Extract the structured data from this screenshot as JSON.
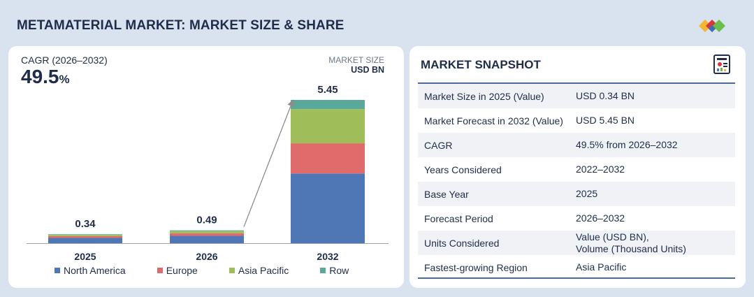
{
  "header": {
    "title": "METAMATERIAL MARKET: MARKET SIZE & SHARE"
  },
  "colors": {
    "north_america": "#4f77b6",
    "europe": "#e06b6b",
    "asia_pacific": "#9fbe5a",
    "row": "#5aa89a",
    "text": "#1f2d4a"
  },
  "left_panel": {
    "cagr_label": "CAGR (2026–2032)",
    "cagr_value": "49.5",
    "cagr_unit": "%",
    "market_size_label": "MARKET SIZE",
    "market_size_unit": "USD BN"
  },
  "chart_data": {
    "type": "bar",
    "stacked": true,
    "categories": [
      "2025",
      "2026",
      "2032"
    ],
    "totals": [
      "0.34",
      "0.49",
      "5.45"
    ],
    "series": [
      {
        "name": "North America",
        "values": [
          0.2,
          0.28,
          2.65
        ]
      },
      {
        "name": "Europe",
        "values": [
          0.07,
          0.1,
          1.15
        ]
      },
      {
        "name": "Asia Pacific",
        "values": [
          0.05,
          0.08,
          1.3
        ]
      },
      {
        "name": "Row",
        "values": [
          0.02,
          0.03,
          0.35
        ]
      }
    ],
    "ylim": [
      0,
      5.45
    ],
    "legend_position": "bottom",
    "annotations": [
      "growth arrow from 2026 to 2032"
    ]
  },
  "snapshot": {
    "title": "MARKET SNAPSHOT",
    "rows": [
      {
        "key": "Market Size in 2025 (Value)",
        "value": "USD 0.34 BN"
      },
      {
        "key": "Market Forecast in 2032 (Value)",
        "value": "USD 5.45 BN"
      },
      {
        "key": "CAGR",
        "value": "49.5% from 2026–2032"
      },
      {
        "key": "Years Considered",
        "value": "2022–2032"
      },
      {
        "key": "Base Year",
        "value": "2025"
      },
      {
        "key": "Forecast Period",
        "value": "2026–2032"
      },
      {
        "key": "Units Considered",
        "value": "Value (USD BN),",
        "value2": "Volume (Thousand Units)"
      },
      {
        "key": "Fastest-growing Region",
        "value": "Asia Pacific"
      }
    ]
  }
}
